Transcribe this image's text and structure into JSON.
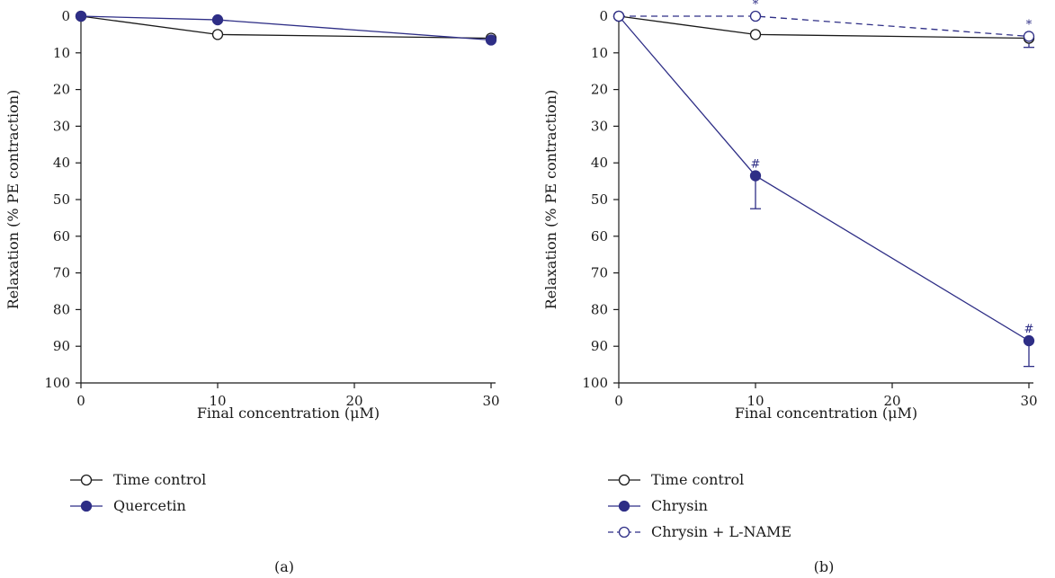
{
  "chart_data": [
    {
      "type": "line",
      "panel_label": "(a)",
      "xlabel": "Final concentration (μM)",
      "ylabel": "Relaxation (% PE contraction)",
      "x_ticks": [
        "0",
        "10",
        "20",
        "30"
      ],
      "y_ticks": [
        "0",
        "10",
        "20",
        "30",
        "40",
        "50",
        "60",
        "70",
        "80",
        "90",
        "100"
      ],
      "xlim": [
        0,
        32
      ],
      "ylim": [
        0,
        100
      ],
      "y_inverted": true,
      "series": [
        {
          "name": "Time control",
          "x": [
            0,
            10,
            30
          ],
          "y": [
            0,
            5,
            6
          ],
          "marker": "open-circle",
          "color": "#1a1a1a",
          "dashed": false,
          "errors": [
            null,
            null,
            null
          ],
          "annotations": [
            null,
            null,
            null
          ]
        },
        {
          "name": "Quercetin",
          "x": [
            0,
            10,
            30
          ],
          "y": [
            0,
            1,
            6.5
          ],
          "marker": "filled-circle",
          "color": "#2e2e86",
          "dashed": false,
          "errors": [
            null,
            null,
            null
          ],
          "annotations": [
            null,
            null,
            null
          ]
        }
      ]
    },
    {
      "type": "line",
      "panel_label": "(b)",
      "xlabel": "Final concentration (μM)",
      "ylabel": "Relaxation (% PE contraction)",
      "x_ticks": [
        "0",
        "10",
        "20",
        "30"
      ],
      "y_ticks": [
        "0",
        "10",
        "20",
        "30",
        "40",
        "50",
        "60",
        "70",
        "80",
        "90",
        "100"
      ],
      "xlim": [
        0,
        32
      ],
      "ylim": [
        0,
        100
      ],
      "y_inverted": true,
      "series": [
        {
          "name": "Time control",
          "x": [
            0,
            10,
            30
          ],
          "y": [
            0,
            5,
            6
          ],
          "marker": "open-circle",
          "color": "#1a1a1a",
          "dashed": false,
          "errors": [
            null,
            null,
            null
          ],
          "annotations": [
            null,
            null,
            null
          ]
        },
        {
          "name": "Chrysin",
          "x": [
            0,
            10,
            30
          ],
          "y": [
            0,
            43.5,
            88.5
          ],
          "marker": "filled-circle",
          "color": "#2e2e86",
          "dashed": false,
          "errors": [
            null,
            9,
            7
          ],
          "annotations": [
            null,
            "#",
            "#"
          ]
        },
        {
          "name": "Chrysin + L-NAME",
          "x": [
            0,
            10,
            30
          ],
          "y": [
            0,
            0,
            5.5
          ],
          "marker": "open-circle",
          "color": "#2e2e86",
          "dashed": true,
          "errors": [
            null,
            null,
            3
          ],
          "annotations": [
            null,
            "*",
            "*"
          ]
        }
      ]
    }
  ]
}
